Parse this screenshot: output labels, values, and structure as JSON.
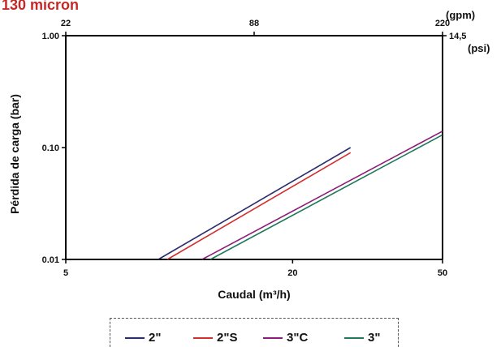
{
  "header": {
    "title": "130 micron"
  },
  "chart_data": {
    "type": "line",
    "title": "130 micron",
    "xlabel": "Caudal (m³/h)",
    "ylabel": "Pérdida de carga  (bar)",
    "x_scale": "log",
    "y_scale": "log",
    "xlim": [
      5,
      50
    ],
    "ylim": [
      0.01,
      1.0
    ],
    "x_ticks": [
      5,
      20,
      50
    ],
    "x_tick_labels": [
      "5",
      "20",
      "50"
    ],
    "y_ticks": [
      0.01,
      0.1,
      1.0
    ],
    "y_tick_labels": [
      "0.01",
      "0.10",
      "1.00"
    ],
    "top_axis": {
      "unit": "(gpm)",
      "ticks": [
        22,
        88,
        220
      ],
      "tick_labels": [
        "22",
        "88",
        "220"
      ]
    },
    "right_axis": {
      "unit": "(psi)",
      "ticks": [
        14.5
      ],
      "tick_labels": [
        "14,5"
      ]
    },
    "grid": false,
    "legend_position": "bottom",
    "series": [
      {
        "name": "2\"",
        "color": "#2b2d6e",
        "x": [
          8.8,
          28.5
        ],
        "y": [
          0.01,
          0.1
        ]
      },
      {
        "name": "2\"S",
        "color": "#d32f2f",
        "x": [
          9.3,
          28.5
        ],
        "y": [
          0.01,
          0.09
        ]
      },
      {
        "name": "3\"C",
        "color": "#8e1a7a",
        "x": [
          11.5,
          50
        ],
        "y": [
          0.01,
          0.14
        ]
      },
      {
        "name": "3\"",
        "color": "#1f7a5c",
        "x": [
          12.1,
          50
        ],
        "y": [
          0.01,
          0.13
        ]
      }
    ]
  }
}
